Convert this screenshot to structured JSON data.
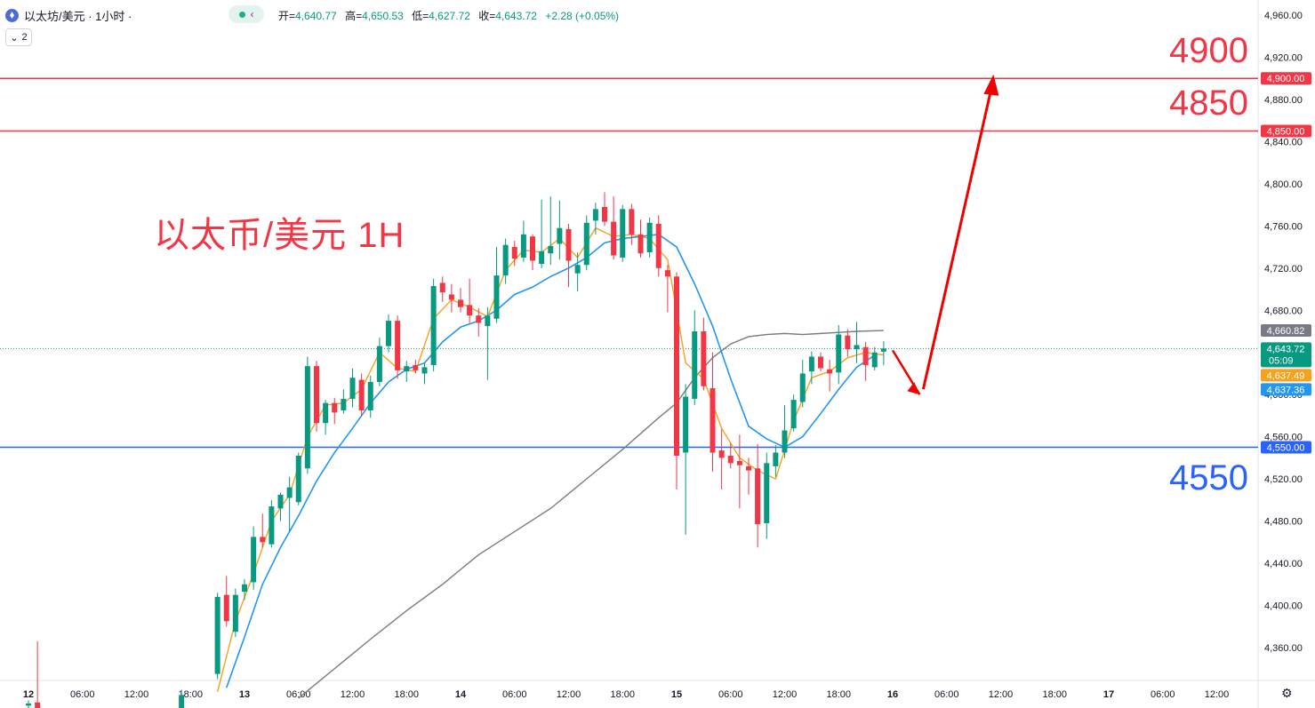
{
  "header": {
    "symbol": "以太坊/美元 · 1小时 ·",
    "open_label": "开=",
    "open": "4,640.77",
    "high_label": "高=",
    "high": "4,650.53",
    "low_label": "低=",
    "low": "4,627.72",
    "close_label": "收=",
    "close": "4,643.72",
    "change": "+2.28 (+0.05%)",
    "indicator_count": "2"
  },
  "annotations": {
    "title": "以太币/美元 1H",
    "level_4900": "4900",
    "level_4850": "4850",
    "level_4550": "4550"
  },
  "colors": {
    "up": "#089981",
    "down": "#f23645",
    "ma_fast": "#f7a21b",
    "ma_mid": "#2196f3",
    "ma_slow": "#7b7b7b",
    "resistance": "#f23645",
    "support": "#2962ff",
    "arrow": "#f00000"
  },
  "chart_data": {
    "type": "candlestick",
    "ylim": [
      4320,
      4980
    ],
    "y_ticks": [
      4360,
      4400,
      4440,
      4480,
      4520,
      4560,
      4600,
      4640,
      4680,
      4720,
      4760,
      4800,
      4840,
      4880,
      4920,
      4960
    ],
    "x_labels": [
      "12",
      "06:00",
      "12:00",
      "18:00",
      "13",
      "06:00",
      "12:00",
      "18:00",
      "14",
      "06:00",
      "12:00",
      "18:00",
      "15",
      "06:00",
      "12:00",
      "18:00",
      "16",
      "06:00",
      "12:00",
      "18:00",
      "17",
      "06:00",
      "12:00"
    ],
    "x_label_hours": [
      0,
      6,
      12,
      18,
      24,
      30,
      36,
      42,
      48,
      54,
      60,
      66,
      72,
      78,
      84,
      90,
      96,
      102,
      108,
      114,
      120,
      126,
      132
    ],
    "candles": [
      {
        "t": 0,
        "o": 4305,
        "h": 4310,
        "l": 4300,
        "c": 4307
      },
      {
        "t": 1,
        "o": 4308,
        "h": 4366,
        "l": 4300,
        "c": 4302
      },
      {
        "t": 17,
        "o": 4300,
        "h": 4320,
        "l": 4295,
        "c": 4315
      },
      {
        "t": 21,
        "o": 4335,
        "h": 4412,
        "l": 4330,
        "c": 4408
      },
      {
        "t": 22,
        "o": 4410,
        "h": 4428,
        "l": 4380,
        "c": 4385
      },
      {
        "t": 23,
        "o": 4375,
        "h": 4416,
        "l": 4370,
        "c": 4410
      },
      {
        "t": 24,
        "o": 4413,
        "h": 4425,
        "l": 4405,
        "c": 4420
      },
      {
        "t": 25,
        "o": 4422,
        "h": 4475,
        "l": 4415,
        "c": 4465
      },
      {
        "t": 26,
        "o": 4465,
        "h": 4487,
        "l": 4455,
        "c": 4460
      },
      {
        "t": 27,
        "o": 4458,
        "h": 4500,
        "l": 4455,
        "c": 4494
      },
      {
        "t": 28,
        "o": 4492,
        "h": 4507,
        "l": 4480,
        "c": 4505
      },
      {
        "t": 29,
        "o": 4502,
        "h": 4522,
        "l": 4470,
        "c": 4512
      },
      {
        "t": 30,
        "o": 4498,
        "h": 4545,
        "l": 4495,
        "c": 4542
      },
      {
        "t": 31,
        "o": 4530,
        "h": 4636,
        "l": 4525,
        "c": 4627
      },
      {
        "t": 32,
        "o": 4627,
        "h": 4632,
        "l": 4565,
        "c": 4573
      },
      {
        "t": 33,
        "o": 4573,
        "h": 4595,
        "l": 4562,
        "c": 4592
      },
      {
        "t": 34,
        "o": 4592,
        "h": 4597,
        "l": 4572,
        "c": 4583
      },
      {
        "t": 35,
        "o": 4585,
        "h": 4605,
        "l": 4582,
        "c": 4596
      },
      {
        "t": 36,
        "o": 4596,
        "h": 4625,
        "l": 4588,
        "c": 4616
      },
      {
        "t": 37,
        "o": 4614,
        "h": 4620,
        "l": 4580,
        "c": 4585
      },
      {
        "t": 38,
        "o": 4585,
        "h": 4618,
        "l": 4578,
        "c": 4612
      },
      {
        "t": 39,
        "o": 4612,
        "h": 4654,
        "l": 4608,
        "c": 4646
      },
      {
        "t": 40,
        "o": 4646,
        "h": 4676,
        "l": 4640,
        "c": 4670
      },
      {
        "t": 41,
        "o": 4670,
        "h": 4675,
        "l": 4615,
        "c": 4623
      },
      {
        "t": 42,
        "o": 4622,
        "h": 4632,
        "l": 4612,
        "c": 4627
      },
      {
        "t": 43,
        "o": 4628,
        "h": 4633,
        "l": 4620,
        "c": 4623
      },
      {
        "t": 44,
        "o": 4620,
        "h": 4630,
        "l": 4610,
        "c": 4626
      },
      {
        "t": 45,
        "o": 4628,
        "h": 4710,
        "l": 4622,
        "c": 4703
      },
      {
        "t": 46,
        "o": 4706,
        "h": 4712,
        "l": 4688,
        "c": 4697
      },
      {
        "t": 47,
        "o": 4695,
        "h": 4705,
        "l": 4678,
        "c": 4690
      },
      {
        "t": 48,
        "o": 4690,
        "h": 4701,
        "l": 4678,
        "c": 4683
      },
      {
        "t": 49,
        "o": 4685,
        "h": 4710,
        "l": 4668,
        "c": 4675
      },
      {
        "t": 50,
        "o": 4675,
        "h": 4682,
        "l": 4655,
        "c": 4668
      },
      {
        "t": 51,
        "o": 4665,
        "h": 4683,
        "l": 4614,
        "c": 4675
      },
      {
        "t": 52,
        "o": 4672,
        "h": 4740,
        "l": 4668,
        "c": 4713
      },
      {
        "t": 53,
        "o": 4713,
        "h": 4748,
        "l": 4705,
        "c": 4742
      },
      {
        "t": 54,
        "o": 4740,
        "h": 4746,
        "l": 4722,
        "c": 4729
      },
      {
        "t": 55,
        "o": 4730,
        "h": 4765,
        "l": 4726,
        "c": 4752
      },
      {
        "t": 56,
        "o": 4750,
        "h": 4752,
        "l": 4718,
        "c": 4727
      },
      {
        "t": 57,
        "o": 4724,
        "h": 4785,
        "l": 4720,
        "c": 4736
      },
      {
        "t": 58,
        "o": 4734,
        "h": 4788,
        "l": 4723,
        "c": 4741
      },
      {
        "t": 59,
        "o": 4743,
        "h": 4784,
        "l": 4728,
        "c": 4758
      },
      {
        "t": 60,
        "o": 4757,
        "h": 4762,
        "l": 4702,
        "c": 4727
      },
      {
        "t": 61,
        "o": 4715,
        "h": 4735,
        "l": 4698,
        "c": 4723
      },
      {
        "t": 62,
        "o": 4723,
        "h": 4770,
        "l": 4718,
        "c": 4763
      },
      {
        "t": 63,
        "o": 4765,
        "h": 4782,
        "l": 4752,
        "c": 4776
      },
      {
        "t": 64,
        "o": 4778,
        "h": 4792,
        "l": 4760,
        "c": 4764
      },
      {
        "t": 65,
        "o": 4764,
        "h": 4788,
        "l": 4728,
        "c": 4732
      },
      {
        "t": 66,
        "o": 4730,
        "h": 4780,
        "l": 4726,
        "c": 4776
      },
      {
        "t": 67,
        "o": 4776,
        "h": 4781,
        "l": 4742,
        "c": 4752
      },
      {
        "t": 68,
        "o": 4752,
        "h": 4766,
        "l": 4730,
        "c": 4734
      },
      {
        "t": 69,
        "o": 4735,
        "h": 4768,
        "l": 4730,
        "c": 4763
      },
      {
        "t": 70,
        "o": 4762,
        "h": 4770,
        "l": 4712,
        "c": 4720
      },
      {
        "t": 71,
        "o": 4718,
        "h": 4723,
        "l": 4678,
        "c": 4712
      },
      {
        "t": 72,
        "o": 4712,
        "h": 4716,
        "l": 4510,
        "c": 4542
      },
      {
        "t": 73,
        "o": 4545,
        "h": 4610,
        "l": 4467,
        "c": 4598
      },
      {
        "t": 74,
        "o": 4596,
        "h": 4680,
        "l": 4590,
        "c": 4660
      },
      {
        "t": 75,
        "o": 4660,
        "h": 4673,
        "l": 4604,
        "c": 4608
      },
      {
        "t": 76,
        "o": 4606,
        "h": 4640,
        "l": 4527,
        "c": 4545
      },
      {
        "t": 77,
        "o": 4547,
        "h": 4567,
        "l": 4510,
        "c": 4540
      },
      {
        "t": 78,
        "o": 4542,
        "h": 4554,
        "l": 4530,
        "c": 4535
      },
      {
        "t": 79,
        "o": 4537,
        "h": 4562,
        "l": 4492,
        "c": 4533
      },
      {
        "t": 80,
        "o": 4532,
        "h": 4540,
        "l": 4505,
        "c": 4528
      },
      {
        "t": 81,
        "o": 4530,
        "h": 4553,
        "l": 4455,
        "c": 4477
      },
      {
        "t": 82,
        "o": 4478,
        "h": 4545,
        "l": 4463,
        "c": 4535
      },
      {
        "t": 83,
        "o": 4532,
        "h": 4552,
        "l": 4522,
        "c": 4545
      },
      {
        "t": 84,
        "o": 4545,
        "h": 4590,
        "l": 4540,
        "c": 4566
      },
      {
        "t": 85,
        "o": 4568,
        "h": 4600,
        "l": 4565,
        "c": 4595
      },
      {
        "t": 86,
        "o": 4593,
        "h": 4633,
        "l": 4588,
        "c": 4620
      },
      {
        "t": 87,
        "o": 4622,
        "h": 4641,
        "l": 4610,
        "c": 4636
      },
      {
        "t": 88,
        "o": 4636,
        "h": 4640,
        "l": 4622,
        "c": 4625
      },
      {
        "t": 89,
        "o": 4624,
        "h": 4633,
        "l": 4603,
        "c": 4620
      },
      {
        "t": 90,
        "o": 4621,
        "h": 4666,
        "l": 4610,
        "c": 4657
      },
      {
        "t": 91,
        "o": 4656,
        "h": 4662,
        "l": 4636,
        "c": 4643
      },
      {
        "t": 92,
        "o": 4643,
        "h": 4669,
        "l": 4630,
        "c": 4647
      },
      {
        "t": 93,
        "o": 4645,
        "h": 4650,
        "l": 4613,
        "c": 4628
      },
      {
        "t": 94,
        "o": 4626,
        "h": 4645,
        "l": 4623,
        "c": 4640
      },
      {
        "t": 95,
        "o": 4640.77,
        "h": 4650.53,
        "l": 4627.72,
        "c": 4643.72
      }
    ],
    "ma_fast": [
      [
        21,
        4318
      ],
      [
        23,
        4385
      ],
      [
        25,
        4430
      ],
      [
        27,
        4480
      ],
      [
        29,
        4505
      ],
      [
        31,
        4560
      ],
      [
        33,
        4590
      ],
      [
        35,
        4592
      ],
      [
        37,
        4605
      ],
      [
        39,
        4640
      ],
      [
        41,
        4625
      ],
      [
        43,
        4622
      ],
      [
        45,
        4672
      ],
      [
        47,
        4690
      ],
      [
        49,
        4683
      ],
      [
        51,
        4674
      ],
      [
        53,
        4718
      ],
      [
        55,
        4737
      ],
      [
        57,
        4735
      ],
      [
        59,
        4748
      ],
      [
        61,
        4730
      ],
      [
        63,
        4758
      ],
      [
        65,
        4750
      ],
      [
        67,
        4752
      ],
      [
        69,
        4748
      ],
      [
        71,
        4728
      ],
      [
        72,
        4680
      ],
      [
        73,
        4630
      ],
      [
        75,
        4615
      ],
      [
        77,
        4568
      ],
      [
        79,
        4540
      ],
      [
        81,
        4528
      ],
      [
        83,
        4520
      ],
      [
        85,
        4575
      ],
      [
        87,
        4616
      ],
      [
        89,
        4622
      ],
      [
        91,
        4635
      ],
      [
        93,
        4640
      ],
      [
        95,
        4637.49
      ]
    ],
    "ma_mid": [
      [
        22,
        4322
      ],
      [
        24,
        4370
      ],
      [
        26,
        4420
      ],
      [
        28,
        4455
      ],
      [
        30,
        4485
      ],
      [
        32,
        4518
      ],
      [
        34,
        4545
      ],
      [
        36,
        4568
      ],
      [
        38,
        4592
      ],
      [
        40,
        4612
      ],
      [
        42,
        4624
      ],
      [
        44,
        4630
      ],
      [
        46,
        4650
      ],
      [
        48,
        4664
      ],
      [
        50,
        4670
      ],
      [
        52,
        4680
      ],
      [
        54,
        4695
      ],
      [
        56,
        4702
      ],
      [
        58,
        4712
      ],
      [
        60,
        4720
      ],
      [
        62,
        4730
      ],
      [
        64,
        4744
      ],
      [
        66,
        4748
      ],
      [
        68,
        4750
      ],
      [
        70,
        4752
      ],
      [
        72,
        4740
      ],
      [
        74,
        4705
      ],
      [
        76,
        4665
      ],
      [
        78,
        4615
      ],
      [
        80,
        4570
      ],
      [
        82,
        4558
      ],
      [
        84,
        4550
      ],
      [
        86,
        4560
      ],
      [
        88,
        4582
      ],
      [
        90,
        4605
      ],
      [
        92,
        4626
      ],
      [
        94,
        4637.36
      ]
    ],
    "ma_slow": [
      [
        30,
        4312
      ],
      [
        34,
        4340
      ],
      [
        38,
        4368
      ],
      [
        42,
        4395
      ],
      [
        46,
        4420
      ],
      [
        50,
        4448
      ],
      [
        54,
        4470
      ],
      [
        58,
        4492
      ],
      [
        62,
        4520
      ],
      [
        66,
        4548
      ],
      [
        70,
        4578
      ],
      [
        72,
        4592
      ],
      [
        74,
        4616
      ],
      [
        76,
        4635
      ],
      [
        78,
        4648
      ],
      [
        80,
        4655
      ],
      [
        82,
        4657
      ],
      [
        84,
        4658
      ],
      [
        86,
        4657
      ],
      [
        88,
        4658
      ],
      [
        90,
        4659
      ],
      [
        92,
        4660
      ],
      [
        95,
        4660.82
      ]
    ],
    "horizontal_lines": [
      {
        "value": 4900,
        "color": "#f23645",
        "label": "4,900.00"
      },
      {
        "value": 4850,
        "color": "#f23645",
        "label": "4,850.00"
      },
      {
        "value": 4550,
        "color": "#2962ff",
        "label": "4,550.00"
      }
    ],
    "price_tags": [
      {
        "value": 4660.82,
        "label": "4,660.82",
        "bg": "#787b86"
      },
      {
        "value": 4643.72,
        "label": "4,643.72",
        "sub": "05:09",
        "bg": "#089981"
      },
      {
        "value": 4637.49,
        "label": "4,637.49",
        "bg": "#f7a21b"
      },
      {
        "value": 4637.36,
        "label": "4,637.36",
        "bg": "#2196f3"
      }
    ],
    "projection_arrow": [
      [
        96,
        4642
      ],
      [
        99,
        4600
      ],
      [
        107,
        4892
      ]
    ]
  }
}
